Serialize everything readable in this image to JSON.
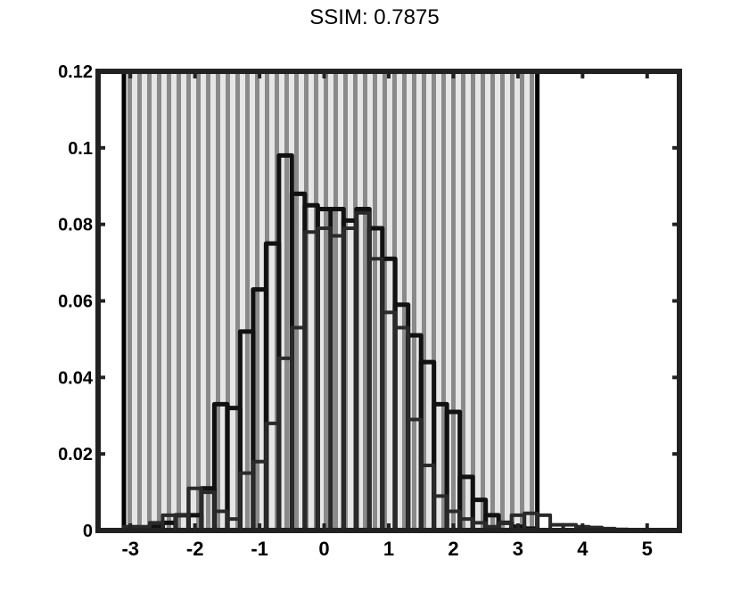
{
  "header": {
    "title": "SSIM: 0.7875"
  },
  "chart_data": {
    "type": "bar",
    "title": "SSIM: 0.7875",
    "xlabel": "",
    "ylabel": "",
    "xlim": [
      -3.5,
      5.5
    ],
    "ylim": [
      0,
      0.12
    ],
    "xticks": [
      -3,
      -2,
      -1,
      0,
      1,
      2,
      3,
      4,
      5
    ],
    "xtick_labels": [
      "-3",
      "-2",
      "-1",
      "0",
      "1",
      "2",
      "3",
      "4",
      "5"
    ],
    "yticks": [
      0,
      0.02,
      0.04,
      0.06,
      0.08,
      0.1,
      0.12
    ],
    "ytick_labels": [
      "0",
      "0.02",
      "0.04",
      "0.06",
      "0.08",
      "0.1",
      "0.12"
    ],
    "bin_width": 0.2,
    "shaded_region": [
      -3.1,
      3.3
    ],
    "series": [
      {
        "x": [
          -3.0,
          -2.8,
          -2.6,
          -2.4,
          -2.2,
          -2.0,
          -1.8,
          -1.6,
          -1.4,
          -1.2,
          -1.0,
          -0.8,
          -0.6,
          -0.4,
          -0.2,
          0.0,
          0.2,
          0.4,
          0.6,
          0.8,
          1.0,
          1.2,
          1.4,
          1.6,
          1.8,
          2.0,
          2.2,
          2.4,
          2.6,
          2.8,
          3.0,
          3.2
        ],
        "values": [
          0.0005,
          0.0005,
          0.001,
          0.002,
          0.004,
          0.004,
          0.011,
          0.033,
          0.032,
          0.052,
          0.063,
          0.075,
          0.098,
          0.088,
          0.085,
          0.084,
          0.084,
          0.081,
          0.084,
          0.079,
          0.071,
          0.059,
          0.051,
          0.044,
          0.033,
          0.031,
          0.014,
          0.008,
          0.004,
          0.002,
          0.001,
          0.0005
        ]
      },
      {
        "x": [
          -3.0,
          -2.8,
          -2.6,
          -2.4,
          -2.2,
          -2.0,
          -1.8,
          -1.6,
          -1.4,
          -1.2,
          -1.0,
          -0.8,
          -0.6,
          -0.4,
          -0.2,
          0.0,
          0.2,
          0.4,
          0.6,
          0.8,
          1.0,
          1.2,
          1.4,
          1.6,
          1.8,
          2.0,
          2.2,
          2.4,
          2.6,
          2.8,
          3.0,
          3.2,
          3.4,
          3.6,
          3.8,
          4.0,
          4.2,
          4.4,
          4.6,
          4.8,
          5.0,
          5.2
        ],
        "values": [
          0.001,
          0.001,
          0.002,
          0.004,
          0.004,
          0.011,
          0.01,
          0.005,
          0.003,
          0.015,
          0.018,
          0.028,
          0.045,
          0.053,
          0.078,
          0.079,
          0.077,
          0.079,
          0.083,
          0.071,
          0.057,
          0.053,
          0.029,
          0.017,
          0.009,
          0.005,
          0.003,
          0.002,
          0.001,
          0.002,
          0.004,
          0.0045,
          0.004,
          0.0015,
          0.0015,
          0.001,
          0.0008,
          0.0005,
          0.0003,
          0.0002,
          0.0001,
          0.0001
        ]
      }
    ],
    "grid": false,
    "legend": false
  }
}
